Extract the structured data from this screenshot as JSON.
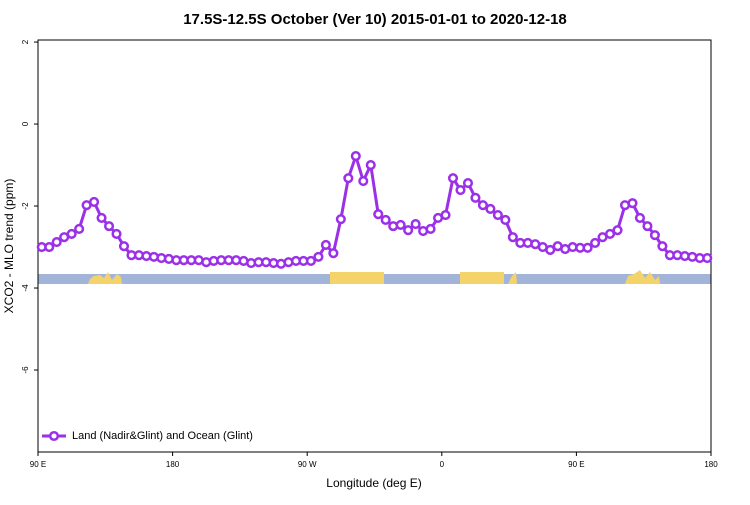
{
  "chart_data": {
    "type": "line",
    "title": "17.5S-12.5S October (Ver 10)   2015-01-01 to 2020-12-18",
    "xlabel": "Longitude (deg E)",
    "ylabel": "XCO2 - MLO trend (ppm)",
    "xlim": [
      90,
      540
    ],
    "ylim": [
      -8,
      2.05
    ],
    "xticks": [
      {
        "value": 90,
        "label": "90 E"
      },
      180,
      {
        "value": 270,
        "label": "90 W"
      },
      {
        "value": 360,
        "label": "0"
      },
      {
        "value": 450,
        "label": "90 E"
      },
      {
        "value": 540,
        "label": "180"
      }
    ],
    "yticks": [
      -6,
      -4,
      -2,
      0,
      2
    ],
    "legend": "bottom-left",
    "x": [
      92.5,
      97.5,
      102.5,
      107.5,
      112.5,
      117.5,
      122.5,
      127.5,
      132.5,
      137.5,
      142.5,
      147.5,
      152.5,
      157.5,
      162.5,
      167.5,
      172.5,
      177.5,
      182.5,
      187.5,
      192.5,
      197.5,
      202.5,
      207.5,
      212.5,
      217.5,
      222.5,
      227.5,
      232.5,
      237.5,
      242.5,
      247.5,
      252.5,
      257.5,
      262.5,
      267.5,
      272.5,
      277.5,
      282.5,
      287.5,
      292.5,
      297.5,
      302.5,
      307.5,
      312.5,
      317.5,
      322.5,
      327.5,
      332.5,
      337.5,
      342.5,
      347.5,
      352.5,
      357.5,
      362.5,
      367.5,
      372.5,
      377.5,
      382.5,
      387.5,
      392.5,
      397.5,
      402.5,
      407.5,
      412.5,
      417.5,
      422.5,
      427.5,
      432.5,
      437.5,
      442.5,
      447.5,
      452.5,
      457.5,
      462.5,
      467.5,
      472.5,
      477.5,
      482.5,
      487.5,
      492.5,
      497.5,
      502.5,
      507.5,
      512.5,
      517.5,
      522.5,
      527.5,
      532.5,
      537.5
    ],
    "series": [
      {
        "name": "Land (Nadir&Glint) and Ocean (Glint)",
        "color": "#9b30e8",
        "values": [
          -3.0,
          -3.0,
          -2.88,
          -2.76,
          -2.68,
          -2.56,
          -1.98,
          -1.9,
          -2.29,
          -2.49,
          -2.68,
          -2.98,
          -3.2,
          -3.2,
          -3.22,
          -3.24,
          -3.27,
          -3.29,
          -3.32,
          -3.32,
          -3.32,
          -3.32,
          -3.37,
          -3.34,
          -3.32,
          -3.32,
          -3.32,
          -3.34,
          -3.39,
          -3.37,
          -3.37,
          -3.39,
          -3.41,
          -3.37,
          -3.34,
          -3.34,
          -3.34,
          -3.24,
          -2.95,
          -3.15,
          -2.32,
          -1.32,
          -0.78,
          -1.39,
          -1.0,
          -2.2,
          -2.34,
          -2.49,
          -2.46,
          -2.59,
          -2.44,
          -2.61,
          -2.56,
          -2.29,
          -2.22,
          -1.32,
          -1.61,
          -1.44,
          -1.8,
          -1.98,
          -2.07,
          -2.22,
          -2.34,
          -2.76,
          -2.9,
          -2.9,
          -2.93,
          -3.0,
          -3.07,
          -2.98,
          -3.05,
          -3.0,
          -3.02,
          -3.02,
          -2.9,
          -2.76,
          -2.68,
          -2.59,
          -1.98,
          -1.93,
          -2.29,
          -2.49,
          -2.71,
          -2.98,
          -3.2,
          -3.2,
          -3.22,
          -3.24,
          -3.27,
          -3.27
        ]
      }
    ]
  }
}
